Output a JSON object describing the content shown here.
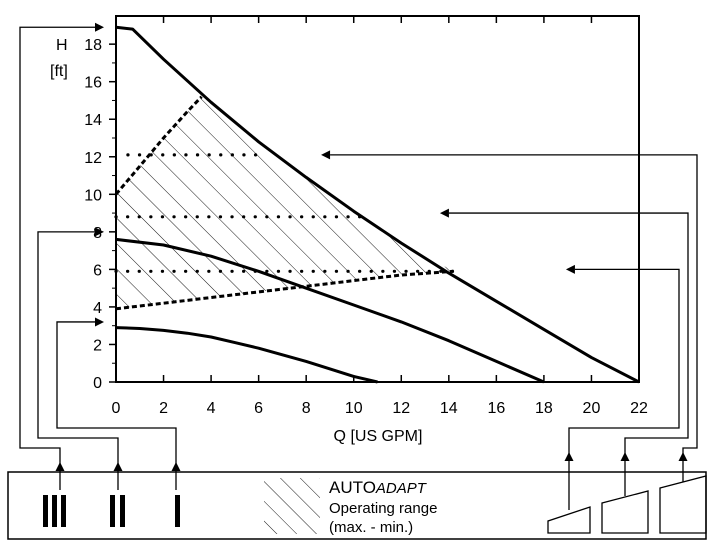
{
  "chart_data": {
    "type": "line",
    "ylabel_line1": "H",
    "ylabel_line2": "[ft]",
    "xlabel": "Q [US GPM]",
    "xlim": [
      0,
      22
    ],
    "ylim": [
      0,
      19.5
    ],
    "xticks": [
      0,
      2,
      4,
      6,
      8,
      10,
      12,
      14,
      16,
      18,
      20,
      22
    ],
    "yticks": [
      0,
      2,
      4,
      6,
      8,
      10,
      12,
      14,
      16,
      18
    ],
    "grid": false,
    "colors": {
      "line": "#000000",
      "background": "#ffffff"
    },
    "series": [
      {
        "name": "III",
        "style": "solid",
        "x": [
          0,
          0.7,
          2,
          4,
          6,
          8,
          10,
          12,
          14,
          16,
          18,
          20,
          22
        ],
        "y": [
          18.9,
          18.8,
          17.2,
          14.9,
          12.8,
          10.9,
          9.1,
          7.4,
          5.8,
          4.3,
          2.8,
          1.3,
          0
        ]
      },
      {
        "name": "II",
        "style": "solid",
        "x": [
          0,
          2,
          4,
          6,
          8,
          10,
          12,
          14,
          16,
          18
        ],
        "y": [
          7.6,
          7.3,
          6.7,
          5.9,
          5.0,
          4.1,
          3.2,
          2.2,
          1.1,
          0
        ]
      },
      {
        "name": "I",
        "style": "solid",
        "x": [
          0,
          1,
          2,
          3,
          4,
          5,
          6,
          7,
          8,
          9,
          10,
          11
        ],
        "y": [
          2.9,
          2.85,
          2.75,
          2.6,
          2.4,
          2.1,
          1.8,
          1.45,
          1.1,
          0.7,
          0.3,
          0
        ]
      },
      {
        "name": "upper-proportional-pressure",
        "style": "dashed",
        "x": [
          0,
          1,
          2,
          3,
          3.6
        ],
        "y": [
          10.0,
          11.5,
          13.0,
          14.4,
          15.2
        ]
      },
      {
        "name": "lower-proportional-pressure",
        "style": "dashed",
        "x": [
          0,
          2,
          4,
          6,
          8,
          10,
          12,
          14.2
        ],
        "y": [
          3.9,
          4.2,
          4.5,
          4.8,
          5.1,
          5.4,
          5.7,
          5.9
        ]
      },
      {
        "name": "constant-pressure-high",
        "style": "dotted",
        "x": [
          0.5,
          6.2
        ],
        "y": [
          12.1,
          12.1
        ]
      },
      {
        "name": "constant-pressure-mid",
        "style": "dotted",
        "x": [
          0,
          10.3
        ],
        "y": [
          8.8,
          8.8
        ]
      },
      {
        "name": "constant-pressure-low",
        "style": "dotted",
        "x": [
          0,
          14.2
        ],
        "y": [
          5.9,
          5.9
        ]
      }
    ],
    "shaded_region": {
      "name": "autoadapt-operating-range",
      "upper_x": [
        0,
        1,
        2,
        3,
        3.6,
        4,
        6,
        8,
        10,
        12,
        14.2
      ],
      "upper_y": [
        10.0,
        11.5,
        13.0,
        14.4,
        15.2,
        14.9,
        12.8,
        10.9,
        9.1,
        7.4,
        5.9
      ],
      "lower_x": [
        14.2,
        12,
        10,
        8,
        6,
        4,
        2,
        0
      ],
      "lower_y": [
        5.9,
        5.7,
        5.4,
        5.1,
        4.8,
        4.5,
        4.2,
        3.9
      ]
    },
    "left_arrows": [
      {
        "target": "III",
        "y": 18.9
      },
      {
        "target": "II",
        "y": 8.0
      },
      {
        "target": "I",
        "y": 3.2
      }
    ],
    "right_arrows": [
      {
        "target": "constant-pressure-high",
        "x": 8.5,
        "y": 12.1
      },
      {
        "target": "constant-pressure-mid",
        "x": 13.5,
        "y": 9.0
      },
      {
        "target": "constant-pressure-low",
        "x": 18.8,
        "y": 6.0
      }
    ]
  },
  "legend": {
    "speeds": [
      "III",
      "II",
      "I"
    ],
    "autoadapt_prefix": "AUTO",
    "autoadapt_suffix": "ADAPT",
    "operating_range": "Operating range",
    "range_note": "(max. - min.)"
  }
}
